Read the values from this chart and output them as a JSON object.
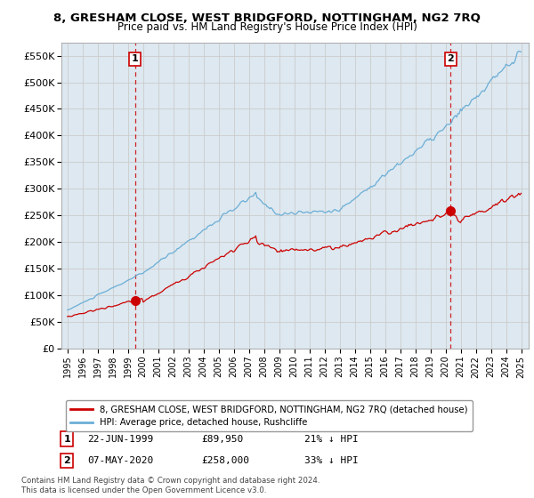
{
  "title": "8, GRESHAM CLOSE, WEST BRIDGFORD, NOTTINGHAM, NG2 7RQ",
  "subtitle": "Price paid vs. HM Land Registry's House Price Index (HPI)",
  "ylim": [
    0,
    575000
  ],
  "yticks": [
    0,
    50000,
    100000,
    150000,
    200000,
    250000,
    300000,
    350000,
    400000,
    450000,
    500000,
    550000
  ],
  "ytick_labels": [
    "£0",
    "£50K",
    "£100K",
    "£150K",
    "£200K",
    "£250K",
    "£300K",
    "£350K",
    "£400K",
    "£450K",
    "£500K",
    "£550K"
  ],
  "xticks": [
    1995,
    1996,
    1997,
    1998,
    1999,
    2000,
    2001,
    2002,
    2003,
    2004,
    2005,
    2006,
    2007,
    2008,
    2009,
    2010,
    2011,
    2012,
    2013,
    2014,
    2015,
    2016,
    2017,
    2018,
    2019,
    2020,
    2021,
    2022,
    2023,
    2024,
    2025
  ],
  "grid_color": "#cccccc",
  "background_color": "#ffffff",
  "plot_bg_color": "#dde8f0",
  "hpi_color": "#6baed6",
  "price_color": "#cc0000",
  "marker1_date_x": 1999.47,
  "marker1_price": 89950,
  "marker2_date_x": 2020.35,
  "marker2_price": 258000,
  "legend_line1": "8, GRESHAM CLOSE, WEST BRIDGFORD, NOTTINGHAM, NG2 7RQ (detached house)",
  "legend_line2": "HPI: Average price, detached house, Rushcliffe",
  "marker1_info_date": "22-JUN-1999",
  "marker1_info_price": "£89,950",
  "marker1_info_hpi": "21% ↓ HPI",
  "marker2_info_date": "07-MAY-2020",
  "marker2_info_price": "£258,000",
  "marker2_info_hpi": "33% ↓ HPI",
  "footnote": "Contains HM Land Registry data © Crown copyright and database right 2024.\nThis data is licensed under the Open Government Licence v3.0."
}
